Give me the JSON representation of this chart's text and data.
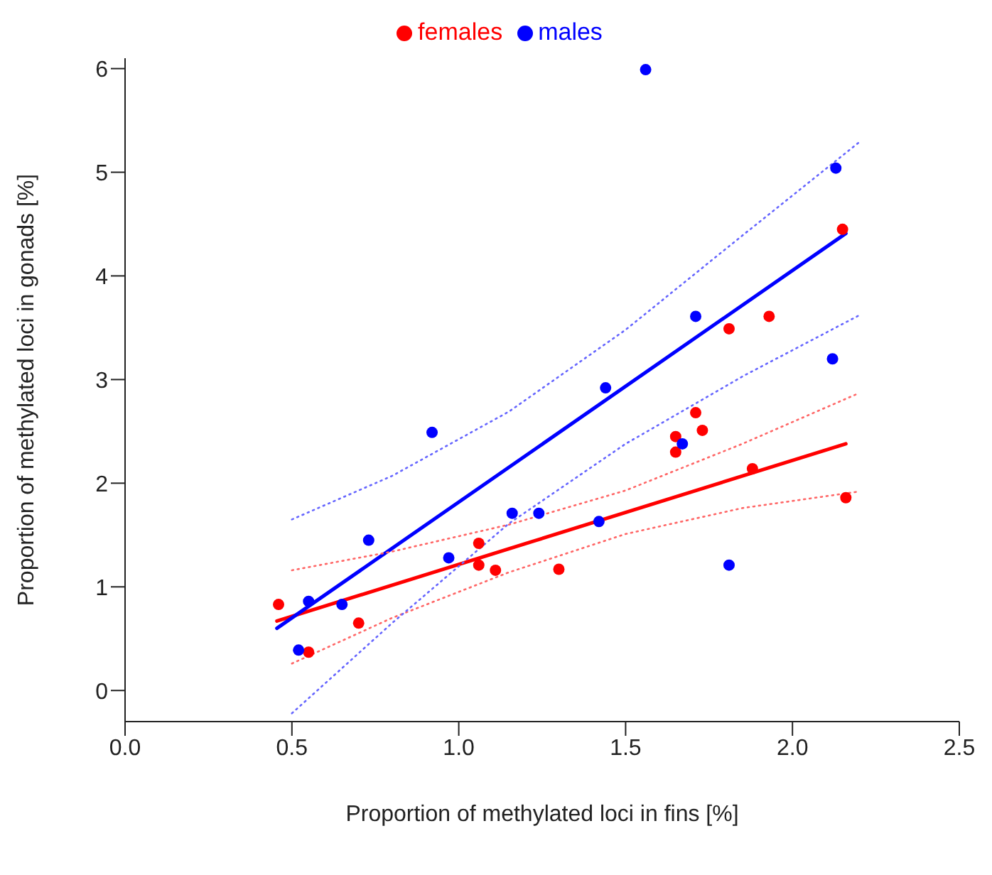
{
  "chart_data": {
    "type": "scatter",
    "xlabel": "Proportion of methylated loci in fins [%]",
    "ylabel": "Proportion of methylated loci in gonads [%]",
    "xlim": [
      0,
      2.5
    ],
    "xticks": [
      {
        "value": 0,
        "label": "0.0"
      },
      {
        "value": 0.5,
        "label": "0.5"
      },
      {
        "value": 1,
        "label": "1.0"
      },
      {
        "value": 1.5,
        "label": "1.5"
      },
      {
        "value": 2,
        "label": "2.0"
      },
      {
        "value": 2.5,
        "label": "2.5"
      }
    ],
    "ylim": [
      -0.3,
      6.1
    ],
    "yticks": [
      0,
      1,
      2,
      3,
      4,
      5,
      6
    ],
    "grid": false,
    "legend": "top",
    "marker": "circle",
    "series": [
      {
        "name": "females",
        "color": "#ff0000",
        "x": [
          0.46,
          0.55,
          0.7,
          1.06,
          1.06,
          1.11,
          1.3,
          1.65,
          1.65,
          1.71,
          1.73,
          1.81,
          1.88,
          1.93,
          2.15,
          2.16
        ],
        "values": [
          0.83,
          0.37,
          0.65,
          1.42,
          1.21,
          1.16,
          1.17,
          2.45,
          2.3,
          2.68,
          2.51,
          3.49,
          2.14,
          3.61,
          4.45,
          1.86
        ]
      },
      {
        "name": "males",
        "color": "#0000ff",
        "x": [
          0.52,
          0.55,
          0.65,
          0.73,
          0.92,
          0.97,
          1.16,
          1.24,
          1.42,
          1.44,
          1.56,
          1.67,
          1.71,
          1.81,
          2.12,
          2.13
        ],
        "values": [
          0.39,
          0.86,
          0.83,
          1.45,
          2.49,
          1.28,
          1.71,
          1.71,
          1.63,
          2.92,
          5.99,
          2.38,
          3.61,
          1.21,
          3.2,
          5.04
        ]
      },
      {
        "type": "line",
        "color": "#ff0000",
        "line_style": "solid",
        "marker": "none",
        "x": [
          0.455,
          2.16
        ],
        "values": [
          0.67,
          2.38
        ]
      },
      {
        "type": "line",
        "color": "#0000ff",
        "line_style": "solid",
        "marker": "none",
        "x": [
          0.455,
          2.16
        ],
        "values": [
          0.6,
          4.41
        ]
      },
      {
        "type": "line",
        "color": "#ff6666",
        "line_style": "dotted",
        "marker": "none",
        "x": [
          0.5,
          0.8,
          1.15,
          1.5,
          1.85,
          2.2
        ],
        "values": [
          1.16,
          1.34,
          1.6,
          1.93,
          2.38,
          2.87
        ]
      },
      {
        "type": "line",
        "color": "#ff6666",
        "line_style": "dotted",
        "marker": "none",
        "x": [
          0.5,
          0.8,
          1.15,
          1.5,
          1.85,
          2.2
        ],
        "values": [
          0.26,
          0.7,
          1.14,
          1.51,
          1.76,
          1.92
        ]
      },
      {
        "type": "line",
        "color": "#6666ff",
        "line_style": "dotted",
        "marker": "none",
        "x": [
          0.5,
          0.8,
          1.15,
          1.5,
          1.85,
          2.2
        ],
        "values": [
          1.65,
          2.07,
          2.69,
          3.48,
          4.39,
          5.29
        ]
      },
      {
        "type": "line",
        "color": "#6666ff",
        "line_style": "dotted",
        "marker": "none",
        "x": [
          0.5,
          0.8,
          1.15,
          1.5,
          1.85,
          2.2
        ],
        "values": [
          -0.22,
          0.65,
          1.61,
          2.38,
          3.03,
          3.62
        ]
      }
    ]
  }
}
